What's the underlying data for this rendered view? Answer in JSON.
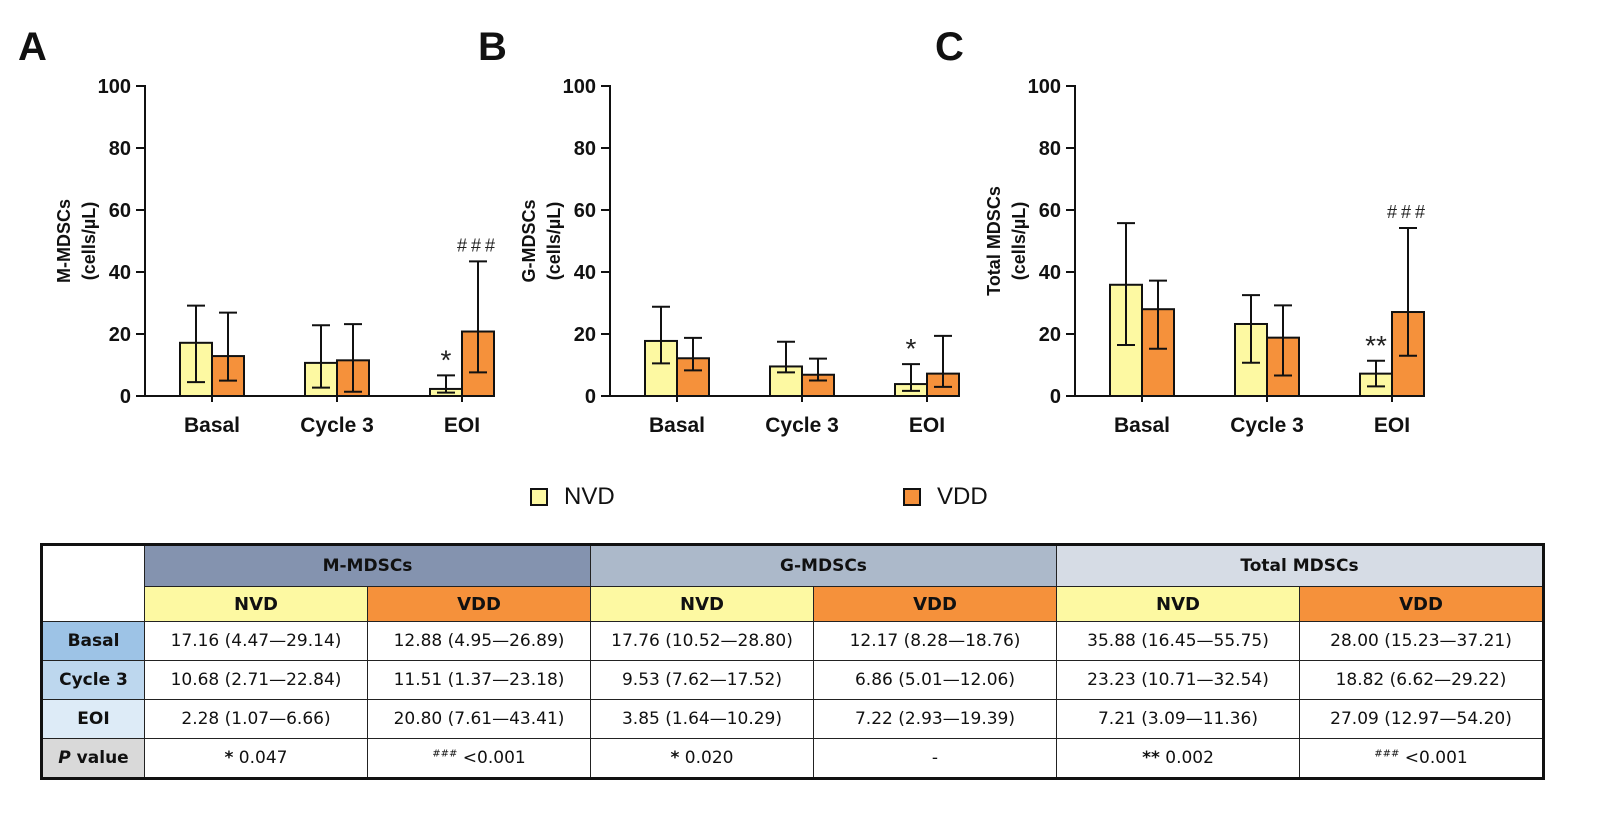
{
  "colors": {
    "nvd": "#fdf9a2",
    "vdd": "#f5913b"
  },
  "legend": {
    "nvd_label": "NVD",
    "vdd_label": "VDD"
  },
  "chart_data": [
    {
      "panel": "A",
      "type": "bar",
      "ylabel_line1": "M-MDSCs",
      "ylabel_line2": "(cells/µL)",
      "categories": [
        "Basal",
        "Cycle 3",
        "EOI"
      ],
      "ylim": [
        0,
        100
      ],
      "yticks": [
        0,
        20,
        40,
        60,
        80,
        100
      ],
      "series": [
        {
          "name": "NVD",
          "values": [
            17.16,
            10.68,
            2.28
          ],
          "err_low": [
            4.47,
            2.71,
            1.07
          ],
          "err_high": [
            29.14,
            22.84,
            6.66
          ]
        },
        {
          "name": "VDD",
          "values": [
            12.88,
            11.51,
            20.8
          ],
          "err_low": [
            4.95,
            1.37,
            7.61
          ],
          "err_high": [
            26.89,
            23.18,
            43.41
          ]
        }
      ],
      "annotations": [
        {
          "text": "*",
          "series": 0,
          "category": 2
        },
        {
          "text": "###",
          "series": 1,
          "category": 2
        }
      ]
    },
    {
      "panel": "B",
      "type": "bar",
      "ylabel_line1": "G-MDSCs",
      "ylabel_line2": "(cells/µL)",
      "categories": [
        "Basal",
        "Cycle 3",
        "EOI"
      ],
      "ylim": [
        0,
        100
      ],
      "yticks": [
        0,
        20,
        40,
        60,
        80,
        100
      ],
      "series": [
        {
          "name": "NVD",
          "values": [
            17.76,
            9.53,
            3.85
          ],
          "err_low": [
            10.52,
            7.62,
            1.64
          ],
          "err_high": [
            28.8,
            17.52,
            10.29
          ]
        },
        {
          "name": "VDD",
          "values": [
            12.17,
            6.86,
            7.22
          ],
          "err_low": [
            8.28,
            5.01,
            2.93
          ],
          "err_high": [
            18.76,
            12.06,
            19.39
          ]
        }
      ],
      "annotations": [
        {
          "text": "*",
          "series": 0,
          "category": 2
        }
      ]
    },
    {
      "panel": "C",
      "type": "bar",
      "ylabel_line1": "Total MDSCs",
      "ylabel_line2": "(cells/µL)",
      "categories": [
        "Basal",
        "Cycle 3",
        "EOI"
      ],
      "ylim": [
        0,
        100
      ],
      "yticks": [
        0,
        20,
        40,
        60,
        80,
        100
      ],
      "series": [
        {
          "name": "NVD",
          "values": [
            35.88,
            23.23,
            7.21
          ],
          "err_low": [
            16.45,
            10.71,
            3.09
          ],
          "err_high": [
            55.75,
            32.54,
            11.36
          ]
        },
        {
          "name": "VDD",
          "values": [
            28.0,
            18.82,
            27.09
          ],
          "err_low": [
            15.23,
            6.62,
            12.97
          ],
          "err_high": [
            37.21,
            29.22,
            54.2
          ]
        }
      ],
      "annotations": [
        {
          "text": "**",
          "series": 0,
          "category": 2
        },
        {
          "text": "###",
          "series": 1,
          "category": 2
        }
      ]
    }
  ],
  "table": {
    "groups": [
      "M-MDSCs",
      "G-MDSCs",
      "Total MDSCs"
    ],
    "subheaders": [
      "NVD",
      "VDD",
      "NVD",
      "VDD",
      "NVD",
      "VDD"
    ],
    "rows": [
      {
        "label": "Basal",
        "cells": [
          "17.16 (4.47—29.14)",
          "12.88 (4.95—26.89)",
          "17.76 (10.52—28.80)",
          "12.17 (8.28—18.76)",
          "35.88 (16.45—55.75)",
          "28.00 (15.23—37.21)"
        ]
      },
      {
        "label": "Cycle 3",
        "cells": [
          "10.68 (2.71—22.84)",
          "11.51 (1.37—23.18)",
          "9.53 (7.62—17.52)",
          "6.86 (5.01—12.06)",
          "23.23 (10.71—32.54)",
          "18.82 (6.62—29.22)"
        ]
      },
      {
        "label": "EOI",
        "cells": [
          "2.28 (1.07—6.66)",
          "20.80 (7.61—43.41)",
          "3.85 (1.64—10.29)",
          "7.22 (2.93—19.39)",
          "7.21 (3.09—11.36)",
          "27.09 (12.97—54.20)"
        ]
      }
    ],
    "pvalue_row": {
      "label_italic": "P",
      "label_rest": " value",
      "cells": [
        {
          "mark": "*",
          "value": " 0.047"
        },
        {
          "mark": "###",
          "value": " <0.001"
        },
        {
          "mark": "*",
          "value": " 0.020"
        },
        {
          "mark": "",
          "value": "-"
        },
        {
          "mark": "**",
          "value": " 0.002"
        },
        {
          "mark": "###",
          "value": " <0.001"
        }
      ]
    },
    "group_colors": [
      "#8493af",
      "#acb9ca",
      "#d6dce5"
    ],
    "row_colors": [
      "#9dc3e6",
      "#bdd7ee",
      "#ddebf7",
      "#d9d9d9"
    ]
  }
}
